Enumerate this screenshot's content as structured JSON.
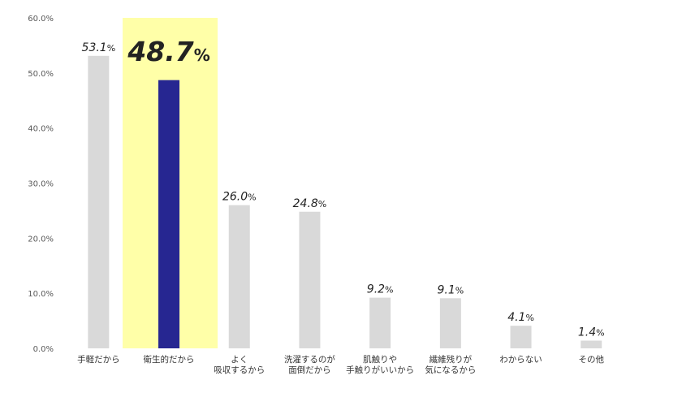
{
  "chart_data": {
    "type": "bar",
    "ylim": [
      0,
      60
    ],
    "y_ticks": [
      {
        "value": 0,
        "label": "0.0%"
      },
      {
        "value": 10,
        "label": "10.0%"
      },
      {
        "value": 20,
        "label": "20.0%"
      },
      {
        "value": 30,
        "label": "30.0%"
      },
      {
        "value": 40,
        "label": "40.0%"
      },
      {
        "value": 50,
        "label": "50.0%"
      },
      {
        "value": 60,
        "label": "60.0%"
      }
    ],
    "categories": [
      [
        "手軽だから"
      ],
      [
        "衛生的だから"
      ],
      [
        "よく",
        "吸収するから"
      ],
      [
        "洗濯するのが",
        "面倒だから"
      ],
      [
        "肌触りや",
        "手触りがいいから"
      ],
      [
        "繊維残りが",
        "気になるから"
      ],
      [
        "わからない"
      ],
      [
        "その他"
      ]
    ],
    "values": [
      53.1,
      48.7,
      26.0,
      24.8,
      9.2,
      9.1,
      4.1,
      1.4
    ],
    "value_labels": [
      {
        "num": "53.1",
        "unit": "%"
      },
      {
        "num": "48.7",
        "unit": "%"
      },
      {
        "num": "26.0",
        "unit": "%"
      },
      {
        "num": "24.8",
        "unit": "%"
      },
      {
        "num": "9.2",
        "unit": "%"
      },
      {
        "num": "9.1",
        "unit": "%"
      },
      {
        "num": "4.1",
        "unit": "%"
      },
      {
        "num": "1.4",
        "unit": "%"
      }
    ],
    "highlight_index": 1,
    "colors": {
      "bar": "#d9d9d9",
      "highlight_bar": "#262691",
      "highlight_background": "#ffffa8",
      "text": "#222222",
      "axis_text": "#595959"
    },
    "grid": false,
    "legend": "none"
  }
}
